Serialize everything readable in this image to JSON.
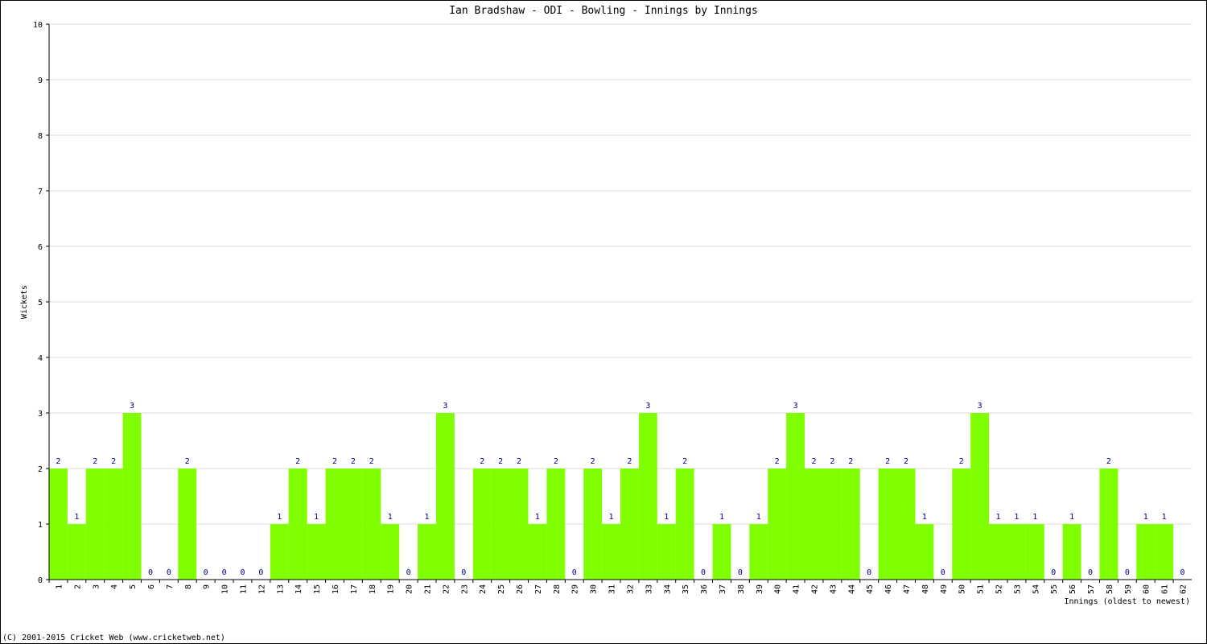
{
  "chart_data": {
    "type": "bar",
    "title": "Ian Bradshaw - ODI - Bowling - Innings by Innings",
    "x_label": "Innings (oldest to newest)",
    "y_label": "Wickets",
    "footer": "(C) 2001-2015 Cricket Web (www.cricketweb.net)",
    "categories": [
      "1",
      "2",
      "3",
      "4",
      "5",
      "6",
      "7",
      "8",
      "9",
      "10",
      "11",
      "12",
      "13",
      "14",
      "15",
      "16",
      "17",
      "18",
      "19",
      "20",
      "21",
      "22",
      "23",
      "24",
      "25",
      "26",
      "27",
      "28",
      "29",
      "30",
      "31",
      "32",
      "33",
      "34",
      "35",
      "36",
      "37",
      "38",
      "39",
      "40",
      "41",
      "42",
      "43",
      "44",
      "45",
      "46",
      "47",
      "48",
      "49",
      "50",
      "51",
      "52",
      "53",
      "54",
      "55",
      "56",
      "57",
      "58",
      "59",
      "60",
      "61",
      "62"
    ],
    "values": [
      2,
      1,
      2,
      2,
      3,
      0,
      0,
      2,
      0,
      0,
      0,
      0,
      1,
      2,
      1,
      2,
      2,
      2,
      1,
      0,
      1,
      3,
      0,
      2,
      2,
      2,
      1,
      2,
      0,
      2,
      1,
      2,
      3,
      1,
      2,
      0,
      1,
      0,
      1,
      2,
      3,
      2,
      2,
      2,
      0,
      2,
      2,
      1,
      0,
      2,
      3,
      1,
      1,
      1,
      0,
      1,
      0,
      2,
      0,
      1,
      1,
      0
    ],
    "color": "#80ff00",
    "ylim": [
      0,
      10
    ],
    "yticks": [
      0,
      1,
      2,
      3,
      4,
      5,
      6,
      7,
      8,
      9,
      10
    ],
    "grid": true
  }
}
